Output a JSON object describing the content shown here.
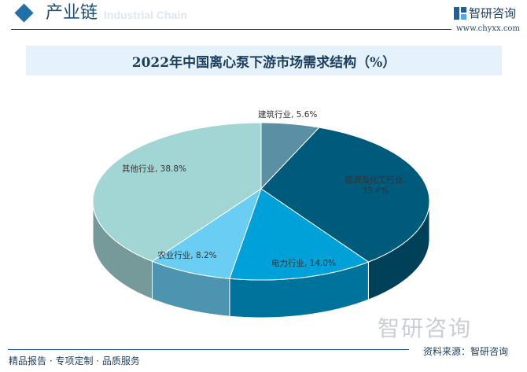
{
  "header": {
    "section_title": "产业链",
    "section_subtitle": "Industrial Chain",
    "brand": "智研咨询",
    "website": "www.chyxx.com"
  },
  "footer": {
    "tagline": "精品报告 · 专项定制 · 品质服务",
    "source": "资料来源：智研咨询",
    "watermark": "智研咨询"
  },
  "chart_data": {
    "type": "pie",
    "title": "2022年中国离心泵下游市场需求结构（%）",
    "three_d": true,
    "start": "12 o'clock, clockwise",
    "slices": [
      {
        "name": "建筑行业",
        "value": 5.6,
        "label": "建筑行业, 5.6%",
        "color": "#5b8fa3"
      },
      {
        "name": "能源及化工行业",
        "value": 33.4,
        "label": "能源及化工行业, 33.4%",
        "color": "#005a7b"
      },
      {
        "name": "电力行业",
        "value": 14.0,
        "label": "电力行业, 14.0%",
        "color": "#00a0d9"
      },
      {
        "name": "农业行业",
        "value": 8.2,
        "label": "农业行业, 8.2%",
        "color": "#6acdf3"
      },
      {
        "name": "其他行业",
        "value": 38.8,
        "label": "其他行业, 38.8%",
        "color": "#a2d6d4"
      }
    ]
  }
}
